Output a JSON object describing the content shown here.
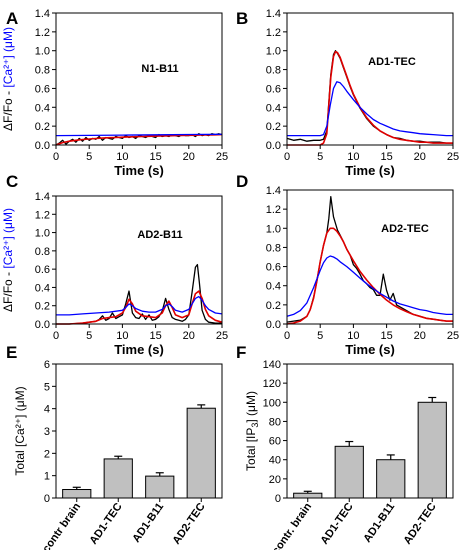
{
  "chart_data": [
    {
      "panel": "A",
      "type": "line",
      "annotation": "N1-B11",
      "xlabel": "Time (s)",
      "ylabel_a": "ΔF/Fo",
      "ylabel_sep": " - ",
      "ylabel_b": "[Ca²⁺] (μM)",
      "xlim": [
        0,
        25
      ],
      "ylim": [
        0,
        1.4
      ],
      "xticks": [
        "0",
        "5",
        "10",
        "15",
        "20",
        "25"
      ],
      "yticks": [
        "0.0",
        "0.2",
        "0.4",
        "0.6",
        "0.8",
        "1.0",
        "1.2",
        "1.4"
      ],
      "series": [
        {
          "color": "#000000",
          "x": [
            0,
            0.5,
            1,
            1.5,
            2,
            2.5,
            3,
            3.5,
            4,
            4.5,
            5,
            5.5,
            6,
            6.5,
            7,
            7.5,
            8,
            8.5,
            9,
            9.5,
            10,
            10.5,
            11,
            11.5,
            12,
            12.5,
            13,
            13.5,
            14,
            14.5,
            15,
            15.5,
            16,
            16.5,
            17,
            17.5,
            18,
            18.5,
            19,
            19.5,
            20,
            20.5,
            21,
            21.5,
            22,
            22.5,
            23,
            23.5,
            24,
            24.5,
            25
          ],
          "y": [
            0.0,
            0.02,
            0.05,
            0.01,
            0.04,
            0.06,
            0.03,
            0.07,
            0.04,
            0.08,
            0.05,
            0.07,
            0.06,
            0.09,
            0.05,
            0.08,
            0.07,
            0.06,
            0.09,
            0.08,
            0.07,
            0.1,
            0.08,
            0.09,
            0.07,
            0.1,
            0.09,
            0.08,
            0.1,
            0.09,
            0.08,
            0.11,
            0.09,
            0.1,
            0.09,
            0.11,
            0.1,
            0.09,
            0.11,
            0.1,
            0.1,
            0.11,
            0.09,
            0.12,
            0.1,
            0.11,
            0.1,
            0.12,
            0.11,
            0.12,
            0.11
          ]
        },
        {
          "color": "#e00000",
          "x": [
            0,
            1,
            2,
            3,
            4,
            5,
            6,
            7,
            8,
            9,
            10,
            11,
            12,
            13,
            14,
            15,
            16,
            17,
            18,
            19,
            20,
            21,
            22,
            23,
            24,
            25
          ],
          "y": [
            0.0,
            0.025,
            0.04,
            0.05,
            0.058,
            0.064,
            0.069,
            0.073,
            0.077,
            0.08,
            0.083,
            0.086,
            0.088,
            0.09,
            0.092,
            0.094,
            0.096,
            0.098,
            0.1,
            0.101,
            0.103,
            0.104,
            0.106,
            0.107,
            0.108,
            0.11
          ]
        },
        {
          "color": "#0000ff",
          "x": [
            0,
            5,
            10,
            15,
            20,
            25
          ],
          "y": [
            0.1,
            0.102,
            0.105,
            0.108,
            0.111,
            0.113
          ]
        }
      ]
    },
    {
      "panel": "B",
      "type": "line",
      "annotation": "AD1-TEC",
      "xlabel": "Time (s)",
      "xlim": [
        0,
        25
      ],
      "ylim": [
        0,
        1.4
      ],
      "xticks": [
        "0",
        "5",
        "10",
        "15",
        "20",
        "25"
      ],
      "yticks": [
        "0.0",
        "0.2",
        "0.4",
        "0.6",
        "0.8",
        "1.0",
        "1.2",
        "1.4"
      ],
      "series": [
        {
          "color": "#000000",
          "x": [
            0,
            1,
            2,
            3,
            4,
            5,
            5.5,
            6,
            6.3,
            6.6,
            7,
            7.3,
            7.6,
            8,
            8.5,
            9,
            9.5,
            10,
            11,
            12,
            13,
            14,
            15,
            16,
            17,
            18,
            19,
            20,
            21,
            22,
            23,
            24,
            25
          ],
          "y": [
            0.07,
            0.05,
            0.06,
            0.04,
            0.05,
            0.05,
            0.06,
            0.15,
            0.45,
            0.75,
            0.96,
            1.0,
            0.97,
            0.92,
            0.82,
            0.72,
            0.62,
            0.53,
            0.39,
            0.28,
            0.2,
            0.15,
            0.11,
            0.08,
            0.07,
            0.05,
            0.04,
            0.04,
            0.03,
            0.03,
            0.03,
            0.02,
            0.02
          ]
        },
        {
          "color": "#e00000",
          "x": [
            0,
            1,
            2,
            3,
            4,
            5,
            5.5,
            6,
            6.3,
            6.6,
            7,
            7.3,
            7.6,
            8,
            8.5,
            9,
            9.5,
            10,
            11,
            12,
            13,
            14,
            15,
            16,
            17,
            18,
            19,
            20,
            21,
            22,
            23,
            24,
            25
          ],
          "y": [
            0.0,
            0.0,
            0.0,
            0.0,
            0.0,
            0.0,
            0.02,
            0.12,
            0.42,
            0.72,
            0.94,
            0.99,
            0.98,
            0.93,
            0.83,
            0.73,
            0.63,
            0.54,
            0.4,
            0.29,
            0.21,
            0.15,
            0.11,
            0.08,
            0.06,
            0.05,
            0.04,
            0.03,
            0.03,
            0.02,
            0.02,
            0.02,
            0.02
          ]
        },
        {
          "color": "#0000ff",
          "x": [
            0,
            1,
            2,
            3,
            4,
            5,
            5.5,
            6,
            6.5,
            7,
            7.5,
            8,
            8.5,
            9,
            10,
            11,
            12,
            13,
            14,
            15,
            16,
            17,
            18,
            19,
            20,
            21,
            22,
            23,
            24,
            25
          ],
          "y": [
            0.1,
            0.1,
            0.1,
            0.1,
            0.1,
            0.1,
            0.11,
            0.2,
            0.42,
            0.6,
            0.67,
            0.66,
            0.62,
            0.57,
            0.48,
            0.4,
            0.33,
            0.27,
            0.23,
            0.2,
            0.17,
            0.15,
            0.14,
            0.13,
            0.12,
            0.115,
            0.11,
            0.105,
            0.1,
            0.1
          ]
        }
      ]
    },
    {
      "panel": "C",
      "type": "line",
      "annotation": "AD2-B11",
      "xlabel": "Time (s)",
      "ylabel_a": "ΔF/Fo",
      "ylabel_sep": " - ",
      "ylabel_b": "[Ca²⁺] (μM)",
      "xlim": [
        0,
        25
      ],
      "ylim": [
        0,
        1.4
      ],
      "xticks": [
        "0",
        "5",
        "10",
        "15",
        "20",
        "25"
      ],
      "yticks": [
        "0.0",
        "0.2",
        "0.4",
        "0.6",
        "0.8",
        "1.0",
        "1.2",
        "1.4"
      ],
      "series": [
        {
          "color": "#000000",
          "x": [
            0,
            2,
            4,
            5,
            6,
            6.5,
            7,
            7.5,
            8,
            8.5,
            9,
            9.5,
            10,
            10.5,
            11,
            11.5,
            12,
            12.5,
            13,
            13.5,
            14,
            14.5,
            15,
            15.5,
            16,
            16.5,
            17,
            17.5,
            18,
            18.5,
            19,
            19.5,
            20,
            20.5,
            21,
            21.3,
            21.6,
            22,
            22.5,
            23,
            24,
            25
          ],
          "y": [
            0.0,
            0.0,
            0.01,
            0.02,
            0.03,
            0.05,
            0.09,
            0.04,
            0.06,
            0.12,
            0.06,
            0.08,
            0.1,
            0.22,
            0.36,
            0.12,
            0.07,
            0.06,
            0.11,
            0.05,
            0.1,
            0.04,
            0.05,
            0.08,
            0.14,
            0.28,
            0.16,
            0.07,
            0.05,
            0.04,
            0.03,
            0.05,
            0.1,
            0.35,
            0.62,
            0.65,
            0.45,
            0.15,
            0.05,
            0.02,
            0.01,
            0.01
          ]
        },
        {
          "color": "#e00000",
          "x": [
            0,
            2,
            4,
            6,
            7,
            8,
            9,
            10,
            10.5,
            11,
            11.5,
            12,
            13,
            14,
            15,
            16,
            16.5,
            17,
            17.5,
            18,
            19,
            20,
            20.5,
            21,
            21.5,
            22,
            22.5,
            23,
            24,
            25
          ],
          "y": [
            0.0,
            0.0,
            0.01,
            0.03,
            0.06,
            0.07,
            0.08,
            0.12,
            0.18,
            0.27,
            0.22,
            0.14,
            0.09,
            0.08,
            0.07,
            0.12,
            0.2,
            0.25,
            0.18,
            0.1,
            0.07,
            0.1,
            0.22,
            0.33,
            0.36,
            0.28,
            0.16,
            0.09,
            0.04,
            0.02
          ]
        },
        {
          "color": "#0000ff",
          "x": [
            0,
            2,
            4,
            6,
            8,
            10,
            10.5,
            11,
            11.5,
            12,
            13,
            14,
            15,
            16,
            16.5,
            17,
            17.5,
            18,
            19,
            20,
            20.5,
            21,
            21.5,
            22,
            22.5,
            23,
            24,
            25
          ],
          "y": [
            0.1,
            0.1,
            0.11,
            0.12,
            0.13,
            0.15,
            0.18,
            0.22,
            0.2,
            0.17,
            0.14,
            0.13,
            0.13,
            0.16,
            0.2,
            0.22,
            0.19,
            0.15,
            0.13,
            0.16,
            0.22,
            0.28,
            0.3,
            0.26,
            0.2,
            0.16,
            0.12,
            0.11
          ]
        }
      ]
    },
    {
      "panel": "D",
      "type": "line",
      "annotation": "AD2-TEC",
      "xlabel": "Time (s)",
      "xlim": [
        0,
        25
      ],
      "ylim": [
        0,
        1.4
      ],
      "xticks": [
        "0",
        "5",
        "10",
        "15",
        "20",
        "25"
      ],
      "yticks": [
        "0.0",
        "0.2",
        "0.4",
        "0.6",
        "0.8",
        "1.0",
        "1.2",
        "1.4"
      ],
      "series": [
        {
          "color": "#000000",
          "x": [
            0,
            1,
            2,
            3,
            3.5,
            4,
            4.5,
            5,
            5.5,
            6,
            6.3,
            6.6,
            7,
            7.3,
            7.6,
            8,
            8.5,
            9,
            9.5,
            10,
            10.5,
            11,
            11.5,
            12,
            12.5,
            13,
            13.5,
            14,
            14.5,
            15,
            15.5,
            16,
            16.5,
            17,
            18,
            19,
            20,
            21,
            22,
            23,
            24,
            25
          ],
          "y": [
            0.02,
            0.03,
            0.04,
            0.08,
            0.15,
            0.28,
            0.45,
            0.65,
            0.82,
            0.95,
            1.1,
            1.33,
            1.12,
            1.05,
            0.98,
            0.93,
            0.86,
            0.78,
            0.72,
            0.62,
            0.58,
            0.52,
            0.45,
            0.42,
            0.38,
            0.36,
            0.3,
            0.3,
            0.52,
            0.35,
            0.25,
            0.32,
            0.2,
            0.18,
            0.14,
            0.1,
            0.08,
            0.06,
            0.05,
            0.04,
            0.03,
            0.03
          ]
        },
        {
          "color": "#e00000",
          "x": [
            0,
            1,
            2,
            3,
            3.5,
            4,
            4.5,
            5,
            5.5,
            6,
            6.5,
            7,
            7.5,
            8,
            8.5,
            9,
            10,
            11,
            12,
            13,
            14,
            15,
            16,
            17,
            18,
            19,
            20,
            21,
            22,
            23,
            24,
            25
          ],
          "y": [
            0.0,
            0.01,
            0.03,
            0.08,
            0.15,
            0.27,
            0.45,
            0.65,
            0.82,
            0.95,
            1.0,
            1.0,
            0.97,
            0.92,
            0.86,
            0.78,
            0.66,
            0.55,
            0.46,
            0.38,
            0.31,
            0.25,
            0.2,
            0.16,
            0.13,
            0.1,
            0.08,
            0.06,
            0.05,
            0.04,
            0.03,
            0.03
          ]
        },
        {
          "color": "#0000ff",
          "x": [
            0,
            1,
            2,
            3,
            4,
            5,
            5.5,
            6,
            6.5,
            7,
            7.5,
            8,
            9,
            10,
            11,
            12,
            13,
            14,
            15,
            16,
            17,
            18,
            19,
            20,
            21,
            22,
            23,
            24,
            25
          ],
          "y": [
            0.08,
            0.1,
            0.14,
            0.22,
            0.38,
            0.56,
            0.64,
            0.69,
            0.71,
            0.7,
            0.68,
            0.65,
            0.6,
            0.54,
            0.48,
            0.42,
            0.37,
            0.32,
            0.28,
            0.24,
            0.21,
            0.19,
            0.17,
            0.15,
            0.14,
            0.12,
            0.11,
            0.1,
            0.1
          ]
        }
      ]
    },
    {
      "panel": "E",
      "type": "bar",
      "ylabel_a": "Total [Ca²⁺] (μM)",
      "categories": [
        "contr brain",
        "AD1-TEC",
        "AD1-B11",
        "AD2-TEC"
      ],
      "values": [
        0.38,
        1.75,
        0.98,
        4.02
      ],
      "errors": [
        0.1,
        0.12,
        0.15,
        0.15
      ],
      "ylim": [
        0,
        6
      ],
      "yticks": [
        "0",
        "1",
        "2",
        "3",
        "4",
        "5",
        "6"
      ],
      "bar_color": "#c0c0c0"
    },
    {
      "panel": "F",
      "type": "bar",
      "ylabel_a": "Total [IP",
      "ylabel_sub": "3",
      "ylabel_b": "] (μM)",
      "categories": [
        "contr. brain",
        "AD1-TEC",
        "AD1-B11",
        "AD2-TEC"
      ],
      "values": [
        5,
        54,
        40,
        100
      ],
      "errors": [
        2,
        5,
        5,
        5
      ],
      "ylim": [
        0,
        140
      ],
      "yticks": [
        "0",
        "20",
        "40",
        "60",
        "80",
        "100",
        "120",
        "140"
      ],
      "bar_color": "#c0c0c0"
    }
  ]
}
